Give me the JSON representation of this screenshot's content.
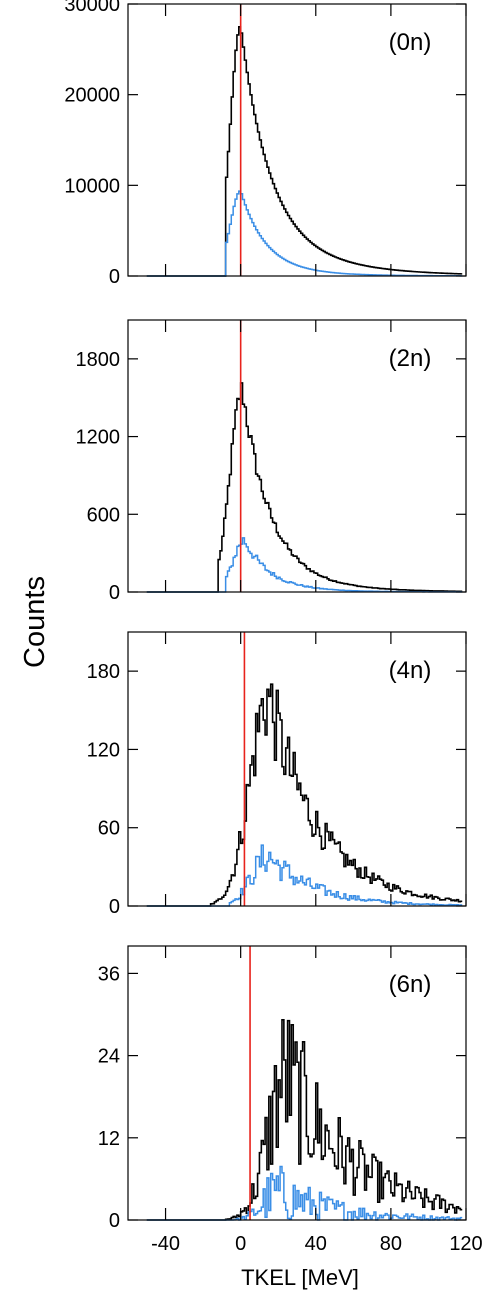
{
  "chart_data": {
    "type": "histogram",
    "ylabel": "Counts",
    "xlabel": "TKEL [MeV]",
    "x_ticks": [
      -40,
      0,
      40,
      80,
      120
    ],
    "xlim": [
      -60,
      120
    ],
    "bin_width_mev": 1,
    "reference_line": {
      "x": 0,
      "color": "#e8231c"
    },
    "series_colors": {
      "total": "#000000",
      "gated": "#3a8ee6"
    },
    "panels": [
      {
        "label": "(0n)",
        "ylim": [
          0,
          30000
        ],
        "y_ticks": [
          0,
          10000,
          20000,
          30000
        ],
        "ref_line_x": 0,
        "total": {
          "start": -8,
          "peak_x": 0,
          "peak_y": 27600,
          "rise_width": 5.5,
          "decay_const": 15,
          "tail_frac": 0.18,
          "tail_const": 38,
          "noise": 0
        },
        "gated": {
          "start": -8,
          "peak_x": 0,
          "peak_y": 9400,
          "rise_width": 5.5,
          "decay_const": 13,
          "tail_frac": 0.1,
          "tail_const": 30,
          "noise": 0
        }
      },
      {
        "label": "(2n)",
        "ylim": [
          0,
          2100
        ],
        "y_ticks": [
          0,
          600,
          1200,
          1800
        ],
        "ref_line_x": 0,
        "total": {
          "start": -12,
          "peak_x": 1,
          "peak_y": 1560,
          "rise_width": 6.5,
          "decay_const": 14,
          "tail_frac": 0.15,
          "tail_const": 30,
          "noise": 0.04
        },
        "gated": {
          "start": -8,
          "peak_x": 2,
          "peak_y": 400,
          "rise_width": 6,
          "decay_const": 13,
          "tail_frac": 0.15,
          "tail_const": 25,
          "noise": 0.08
        }
      },
      {
        "label": "(4n)",
        "ylim": [
          0,
          210
        ],
        "y_ticks": [
          0,
          60,
          120,
          180
        ],
        "ref_line_x": 2,
        "total": {
          "start": -16,
          "peak_x": 15,
          "peak_y": 160,
          "rise_width": 10,
          "decay_const": 26,
          "tail_frac": 0.1,
          "tail_const": 40,
          "noise": 0.14
        },
        "gated": {
          "start": -6,
          "peak_x": 15,
          "peak_y": 38,
          "rise_width": 9,
          "decay_const": 24,
          "tail_frac": 0.1,
          "tail_const": 35,
          "noise": 0.22
        }
      },
      {
        "label": "(6n)",
        "ylim": [
          0,
          40
        ],
        "y_ticks": [
          0,
          12,
          24,
          36
        ],
        "ref_line_x": 5,
        "total": {
          "start": -8,
          "peak_x": 25,
          "peak_y": 21,
          "rise_width": 10,
          "decay_const": 36,
          "tail_frac": 0.15,
          "tail_const": 45,
          "noise": 0.35
        },
        "gated": {
          "start": -4,
          "peak_x": 20,
          "peak_y": 4,
          "rise_width": 8,
          "decay_const": 30,
          "tail_frac": 0.2,
          "tail_const": 40,
          "noise": 0.7
        }
      }
    ]
  }
}
